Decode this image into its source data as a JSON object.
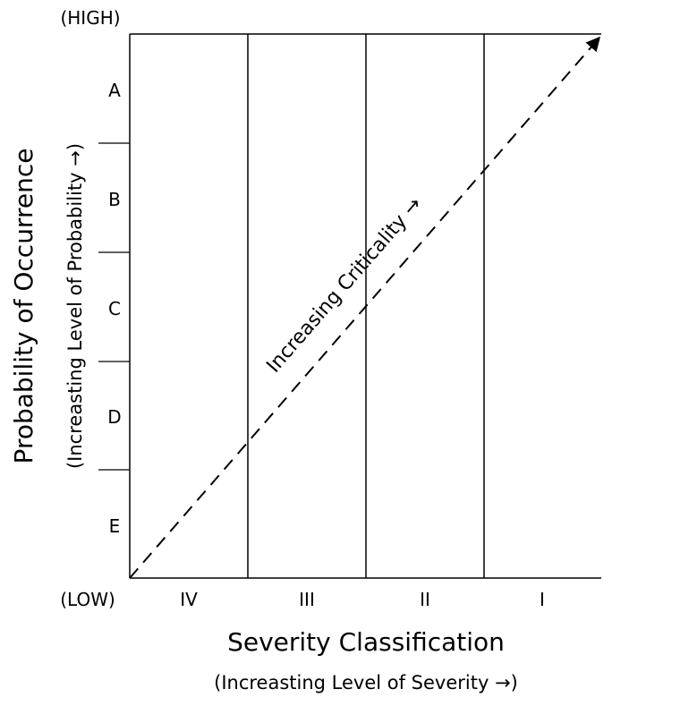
{
  "y_axis": {
    "title": "Probability of Occurrence",
    "subtitle": "(Increasting Level of Probability →)",
    "high_label": "(HIGH)",
    "low_label": "(LOW)",
    "levels": [
      "A",
      "B",
      "C",
      "D",
      "E"
    ]
  },
  "x_axis": {
    "title": "Severity Classification",
    "subtitle": "(Increasting Level of Severity →)",
    "categories": [
      "IV",
      "III",
      "II",
      "I"
    ]
  },
  "diagonal": {
    "label": "Increasing Criticality →"
  },
  "colors": {
    "line": "#000000",
    "background": "#ffffff"
  }
}
